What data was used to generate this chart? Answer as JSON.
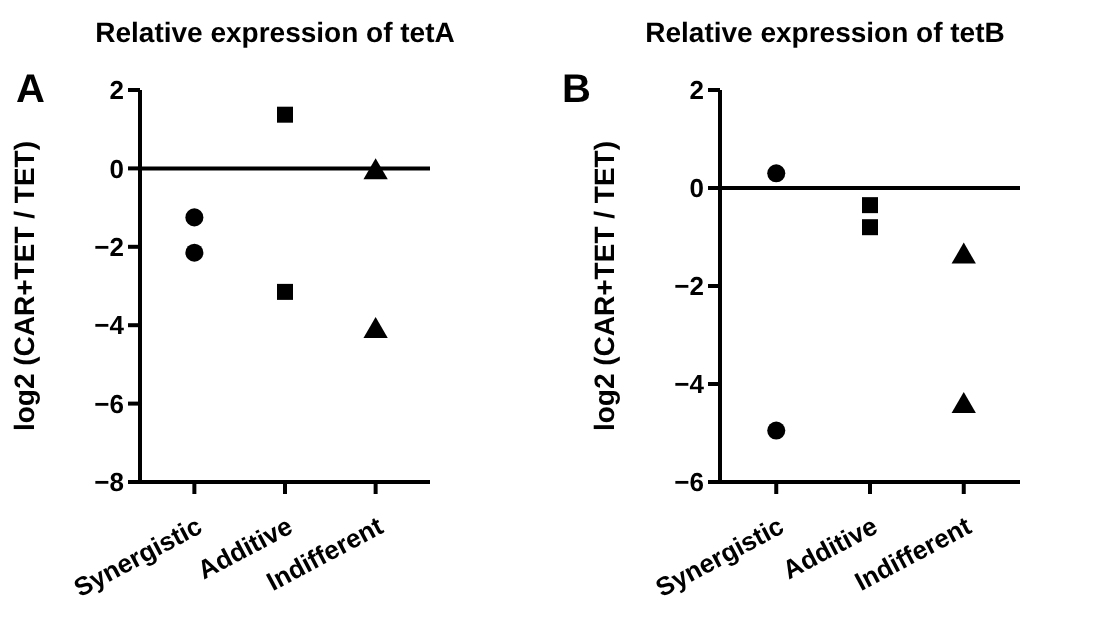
{
  "chart_data": [
    {
      "type": "scatter",
      "title": "Relative expression of tetA",
      "ylabel": "log2 (CAR+TET / TET)",
      "annotations": [
        "A"
      ],
      "categories": [
        "Synergistic",
        "Additive",
        "Indifferent"
      ],
      "ylim": [
        -8,
        2
      ],
      "yticks": [
        -8,
        -6,
        -4,
        -2,
        0,
        2
      ],
      "grid": false,
      "legend": false,
      "ref_lines": [
        {
          "axis": "y",
          "value": 0,
          "color": "#000000"
        }
      ],
      "series": [
        {
          "x": [
            "Synergistic",
            "Synergistic"
          ],
          "values": [
            -1.25,
            -2.15
          ],
          "color": "#000000",
          "marker": "circle"
        },
        {
          "x": [
            "Additive",
            "Additive"
          ],
          "values": [
            1.37,
            -3.15
          ],
          "color": "#000000",
          "marker": "square"
        },
        {
          "x": [
            "Indifferent",
            "Indifferent"
          ],
          "values": [
            -0.1,
            -4.15
          ],
          "color": "#000000",
          "marker": "triangle"
        }
      ]
    },
    {
      "type": "scatter",
      "title": "Relative expression of tetB",
      "ylabel": "log2 (CAR+TET / TET)",
      "annotations": [
        "B"
      ],
      "categories": [
        "Synergistic",
        "Additive",
        "Indifferent"
      ],
      "ylim": [
        -6,
        2
      ],
      "yticks": [
        -6,
        -4,
        -2,
        0,
        2
      ],
      "grid": false,
      "legend": false,
      "ref_lines": [
        {
          "axis": "y",
          "value": 0,
          "color": "#000000"
        }
      ],
      "series": [
        {
          "x": [
            "Synergistic",
            "Synergistic"
          ],
          "values": [
            0.3,
            -4.95
          ],
          "color": "#000000",
          "marker": "circle"
        },
        {
          "x": [
            "Additive",
            "Additive"
          ],
          "values": [
            -0.35,
            -0.8
          ],
          "color": "#000000",
          "marker": "square"
        },
        {
          "x": [
            "Indifferent",
            "Indifferent"
          ],
          "values": [
            -1.4,
            -4.45
          ],
          "color": "#000000",
          "marker": "triangle"
        }
      ]
    }
  ]
}
